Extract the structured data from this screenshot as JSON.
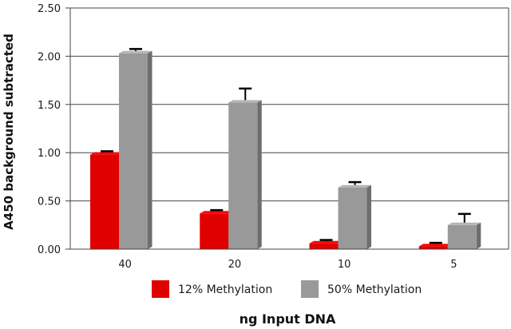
{
  "chart_data": {
    "type": "bar",
    "categories": [
      "40",
      "20",
      "10",
      "5"
    ],
    "series": [
      {
        "name": "12% Methylation",
        "values": [
          0.98,
          0.37,
          0.06,
          0.03
        ],
        "errors": [
          0.01,
          0.01,
          0.01,
          0.01
        ],
        "color": "#e00000"
      },
      {
        "name": "50% Methylation",
        "values": [
          2.03,
          1.52,
          0.64,
          0.25
        ],
        "errors": [
          0.02,
          0.12,
          0.03,
          0.09
        ],
        "color": "#999999"
      }
    ],
    "xlabel": "ng Input DNA",
    "ylabel": "A450 background subtracted",
    "ylim": [
      0,
      2.5
    ],
    "yticks": [
      "0.00",
      "0.50",
      "1.00",
      "1.50",
      "2.00",
      "2.50"
    ],
    "grid": true,
    "legend_position": "bottom"
  }
}
